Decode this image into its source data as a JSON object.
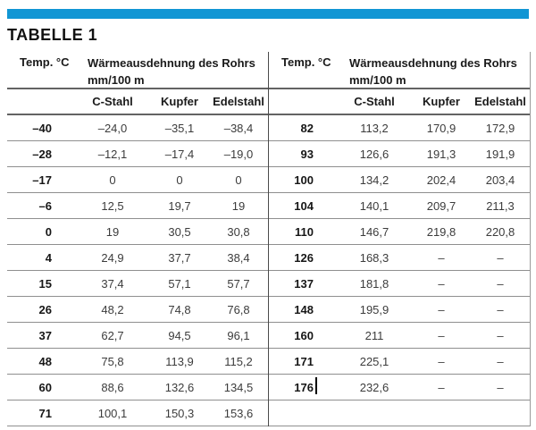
{
  "title": "TABELLE 1",
  "colors": {
    "accent_blue": "#1196d4",
    "rule_dark": "#636363",
    "rule_light": "#8f8f8f",
    "text_dark": "#161616",
    "text_value": "#3c3c3c"
  },
  "header": {
    "temp_label": "Temp. °C",
    "expansion_label_line1": "Wärmeausdehnung des Rohrs",
    "expansion_label_line2": "mm/100 m",
    "columns": [
      "C-Stahl",
      "Kupfer",
      "Edelstahl"
    ]
  },
  "left_table": {
    "rows": [
      {
        "temp": "–40",
        "values": [
          "–24,0",
          "–35,1",
          "–38,4"
        ]
      },
      {
        "temp": "–28",
        "values": [
          "–12,1",
          "–17,4",
          "–19,0"
        ]
      },
      {
        "temp": "–17",
        "values": [
          "0",
          "0",
          "0"
        ]
      },
      {
        "temp": "–6",
        "values": [
          "12,5",
          "19,7",
          "19"
        ]
      },
      {
        "temp": "0",
        "values": [
          "19",
          "30,5",
          "30,8"
        ]
      },
      {
        "temp": "4",
        "values": [
          "24,9",
          "37,7",
          "38,4"
        ]
      },
      {
        "temp": "15",
        "values": [
          "37,4",
          "57,1",
          "57,7"
        ]
      },
      {
        "temp": "26",
        "values": [
          "48,2",
          "74,8",
          "76,8"
        ]
      },
      {
        "temp": "37",
        "values": [
          "62,7",
          "94,5",
          "96,1"
        ]
      },
      {
        "temp": "48",
        "values": [
          "75,8",
          "113,9",
          "115,2"
        ]
      },
      {
        "temp": "60",
        "values": [
          "88,6",
          "132,6",
          "134,5"
        ]
      },
      {
        "temp": "71",
        "values": [
          "100,1",
          "150,3",
          "153,6"
        ]
      }
    ]
  },
  "right_table": {
    "rows": [
      {
        "temp": "82",
        "values": [
          "113,2",
          "170,9",
          "172,9"
        ]
      },
      {
        "temp": "93",
        "values": [
          "126,6",
          "191,3",
          "191,9"
        ]
      },
      {
        "temp": "100",
        "values": [
          "134,2",
          "202,4",
          "203,4"
        ]
      },
      {
        "temp": "104",
        "values": [
          "140,1",
          "209,7",
          "211,3"
        ]
      },
      {
        "temp": "110",
        "values": [
          "146,7",
          "219,8",
          "220,8"
        ]
      },
      {
        "temp": "126",
        "values": [
          "168,3",
          "–",
          "–"
        ]
      },
      {
        "temp": "137",
        "values": [
          "181,8",
          "–",
          "–"
        ]
      },
      {
        "temp": "148",
        "values": [
          "195,9",
          "–",
          "–"
        ]
      },
      {
        "temp": "160",
        "values": [
          "211",
          "–",
          "–"
        ]
      },
      {
        "temp": "171",
        "values": [
          "225,1",
          "–",
          "–"
        ]
      },
      {
        "temp": "176",
        "values": [
          "232,6",
          "–",
          "–"
        ]
      },
      {
        "temp": "",
        "values": [
          "",
          "",
          ""
        ]
      }
    ]
  }
}
